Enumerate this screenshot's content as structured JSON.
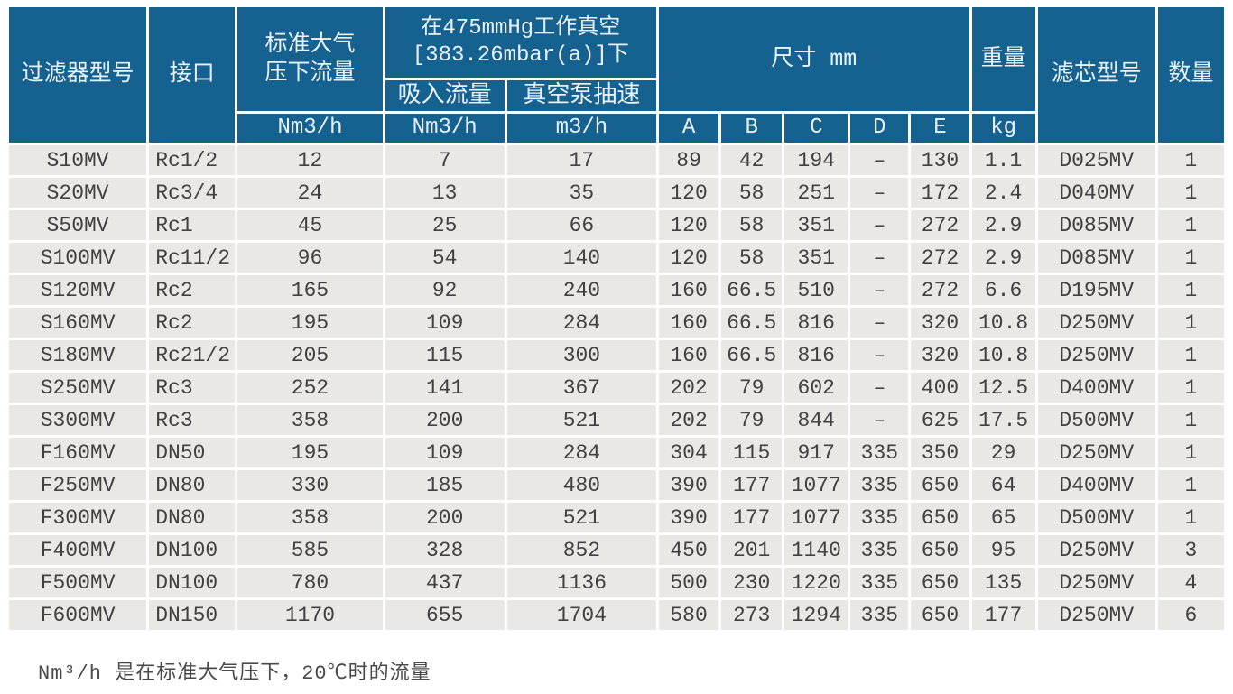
{
  "colors": {
    "header_bg": "#15618F",
    "header_text": "#EAF2F8",
    "row_bg": "#EAE8E5",
    "row_text": "#414141",
    "separator": "#FFFFFF"
  },
  "header": {
    "filter_model": "过滤器型号",
    "connection": "接口",
    "std_flow": "标准大气\n压下流量",
    "vacuum_condition": "在475mmHg工作真空\n[383.26mbar(a)]下",
    "suction_flow": "吸入流量",
    "pump_speed": "真空泵抽速",
    "dimensions": "尺寸 mm",
    "weight": "重量",
    "element_model": "滤芯型号",
    "quantity": "数量",
    "unit_nm3h": "Nm3/h",
    "unit_m3h": "m3/h",
    "unit_kg": "kg",
    "dim_cols": [
      "A",
      "B",
      "C",
      "D",
      "E"
    ]
  },
  "table": {
    "columns": [
      "过滤器型号",
      "接口",
      "标准大气压下流量 Nm3/h",
      "吸入流量 Nm3/h",
      "真空泵抽速 m3/h",
      "A",
      "B",
      "C",
      "D",
      "E",
      "重量 kg",
      "滤芯型号",
      "数量"
    ],
    "rows": [
      [
        "S10MV",
        "Rc1/2",
        "12",
        "7",
        "17",
        "89",
        "42",
        "194",
        "–",
        "130",
        "1.1",
        "D025MV",
        "1"
      ],
      [
        "S20MV",
        "Rc3/4",
        "24",
        "13",
        "35",
        "120",
        "58",
        "251",
        "–",
        "172",
        "2.4",
        "D040MV",
        "1"
      ],
      [
        "S50MV",
        "Rc1",
        "45",
        "25",
        "66",
        "120",
        "58",
        "351",
        "–",
        "272",
        "2.9",
        "D085MV",
        "1"
      ],
      [
        "S100MV",
        "Rc11/2",
        "96",
        "54",
        "140",
        "120",
        "58",
        "351",
        "–",
        "272",
        "2.9",
        "D085MV",
        "1"
      ],
      [
        "S120MV",
        "Rc2",
        "165",
        "92",
        "240",
        "160",
        "66.5",
        "510",
        "–",
        "272",
        "6.6",
        "D195MV",
        "1"
      ],
      [
        "S160MV",
        "Rc2",
        "195",
        "109",
        "284",
        "160",
        "66.5",
        "816",
        "–",
        "320",
        "10.8",
        "D250MV",
        "1"
      ],
      [
        "S180MV",
        "Rc21/2",
        "205",
        "115",
        "300",
        "160",
        "66.5",
        "816",
        "–",
        "320",
        "10.8",
        "D250MV",
        "1"
      ],
      [
        "S250MV",
        "Rc3",
        "252",
        "141",
        "367",
        "202",
        "79",
        "602",
        "–",
        "400",
        "12.5",
        "D400MV",
        "1"
      ],
      [
        "S300MV",
        "Rc3",
        "358",
        "200",
        "521",
        "202",
        "79",
        "844",
        "–",
        "625",
        "17.5",
        "D500MV",
        "1"
      ],
      [
        "F160MV",
        "DN50",
        "195",
        "109",
        "284",
        "304",
        "115",
        "917",
        "335",
        "350",
        "29",
        "D250MV",
        "1"
      ],
      [
        "F250MV",
        "DN80",
        "330",
        "185",
        "480",
        "390",
        "177",
        "1077",
        "335",
        "650",
        "64",
        "D400MV",
        "1"
      ],
      [
        "F300MV",
        "DN80",
        "358",
        "200",
        "521",
        "390",
        "177",
        "1077",
        "335",
        "650",
        "65",
        "D500MV",
        "1"
      ],
      [
        "F400MV",
        "DN100",
        "585",
        "328",
        "852",
        "450",
        "201",
        "1140",
        "335",
        "650",
        "95",
        "D250MV",
        "3"
      ],
      [
        "F500MV",
        "DN100",
        "780",
        "437",
        "1136",
        "500",
        "230",
        "1220",
        "335",
        "650",
        "135",
        "D250MV",
        "4"
      ],
      [
        "F600MV",
        "DN150",
        "1170",
        "655",
        "1704",
        "580",
        "273",
        "1294",
        "335",
        "650",
        "177",
        "D250MV",
        "6"
      ]
    ]
  },
  "footnote": "Nm³/h 是在标准大气压下，20℃时的流量"
}
